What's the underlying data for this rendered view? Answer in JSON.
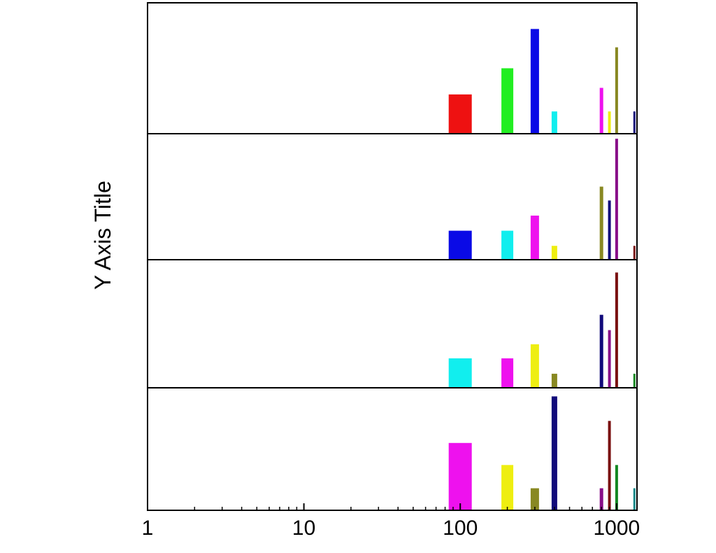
{
  "chart_data": {
    "type": "bar",
    "title": "",
    "xlabel": "",
    "ylabel": "Y Axis Title",
    "x_scale": "log",
    "xlim": [
      1,
      1350
    ],
    "x_ticks": [
      {
        "value": 1,
        "label": "1"
      },
      {
        "value": 10,
        "label": "10"
      },
      {
        "value": 100,
        "label": "100"
      },
      {
        "value": 1000,
        "label": "1000"
      }
    ],
    "grid": false,
    "legend": "none",
    "panels": [
      {
        "ylim": [
          0,
          10
        ],
        "bars": [
          {
            "x": 100,
            "value": 3,
            "color": "#ee1111"
          },
          {
            "x": 200,
            "value": 5,
            "color": "#22ee22"
          },
          {
            "x": 300,
            "value": 8,
            "color": "#0a0ae6"
          },
          {
            "x": 400,
            "value": 1.7,
            "color": "#11eeee"
          },
          {
            "x": 800,
            "value": 3.5,
            "color": "#ee11ee"
          },
          {
            "x": 900,
            "value": 1.7,
            "color": "#eeee11"
          },
          {
            "x": 1000,
            "value": 6.6,
            "color": "#888822"
          },
          {
            "x": 1300,
            "value": 1.7,
            "color": "#110a7a"
          }
        ]
      },
      {
        "ylim": [
          0,
          10
        ],
        "bars": [
          {
            "x": 100,
            "value": 2.3,
            "color": "#0a0ae6"
          },
          {
            "x": 200,
            "value": 2.3,
            "color": "#11eeee"
          },
          {
            "x": 300,
            "value": 3.5,
            "color": "#ee11ee"
          },
          {
            "x": 400,
            "value": 1.1,
            "color": "#eeee11"
          },
          {
            "x": 800,
            "value": 5.8,
            "color": "#888822"
          },
          {
            "x": 900,
            "value": 4.7,
            "color": "#110a7a"
          },
          {
            "x": 1000,
            "value": 9.6,
            "color": "#880e88"
          },
          {
            "x": 1300,
            "value": 1.1,
            "color": "#7a1111"
          }
        ]
      },
      {
        "ylim": [
          0,
          10
        ],
        "bars": [
          {
            "x": 100,
            "value": 2.3,
            "color": "#11eeee"
          },
          {
            "x": 200,
            "value": 2.3,
            "color": "#ee11ee"
          },
          {
            "x": 300,
            "value": 3.4,
            "color": "#eeee11"
          },
          {
            "x": 400,
            "value": 1.1,
            "color": "#888822"
          },
          {
            "x": 800,
            "value": 5.7,
            "color": "#110a7a"
          },
          {
            "x": 900,
            "value": 4.5,
            "color": "#880e88"
          },
          {
            "x": 1000,
            "value": 9.0,
            "color": "#7a1111"
          },
          {
            "x": 1300,
            "value": 1.1,
            "color": "#118822"
          }
        ]
      },
      {
        "ylim": [
          0,
          10
        ],
        "bars": [
          {
            "x": 100,
            "value": 5.5,
            "color": "#ee11ee"
          },
          {
            "x": 200,
            "value": 3.7,
            "color": "#eeee11"
          },
          {
            "x": 300,
            "value": 1.8,
            "color": "#888822"
          },
          {
            "x": 400,
            "value": 9.3,
            "color": "#110a7a"
          },
          {
            "x": 800,
            "value": 1.8,
            "color": "#880e88"
          },
          {
            "x": 900,
            "value": 7.3,
            "color": "#7a1111"
          },
          {
            "x": 1000,
            "value": 3.7,
            "color": "#118822"
          },
          {
            "x": 1300,
            "value": 1.8,
            "color": "#118888"
          }
        ]
      }
    ]
  }
}
